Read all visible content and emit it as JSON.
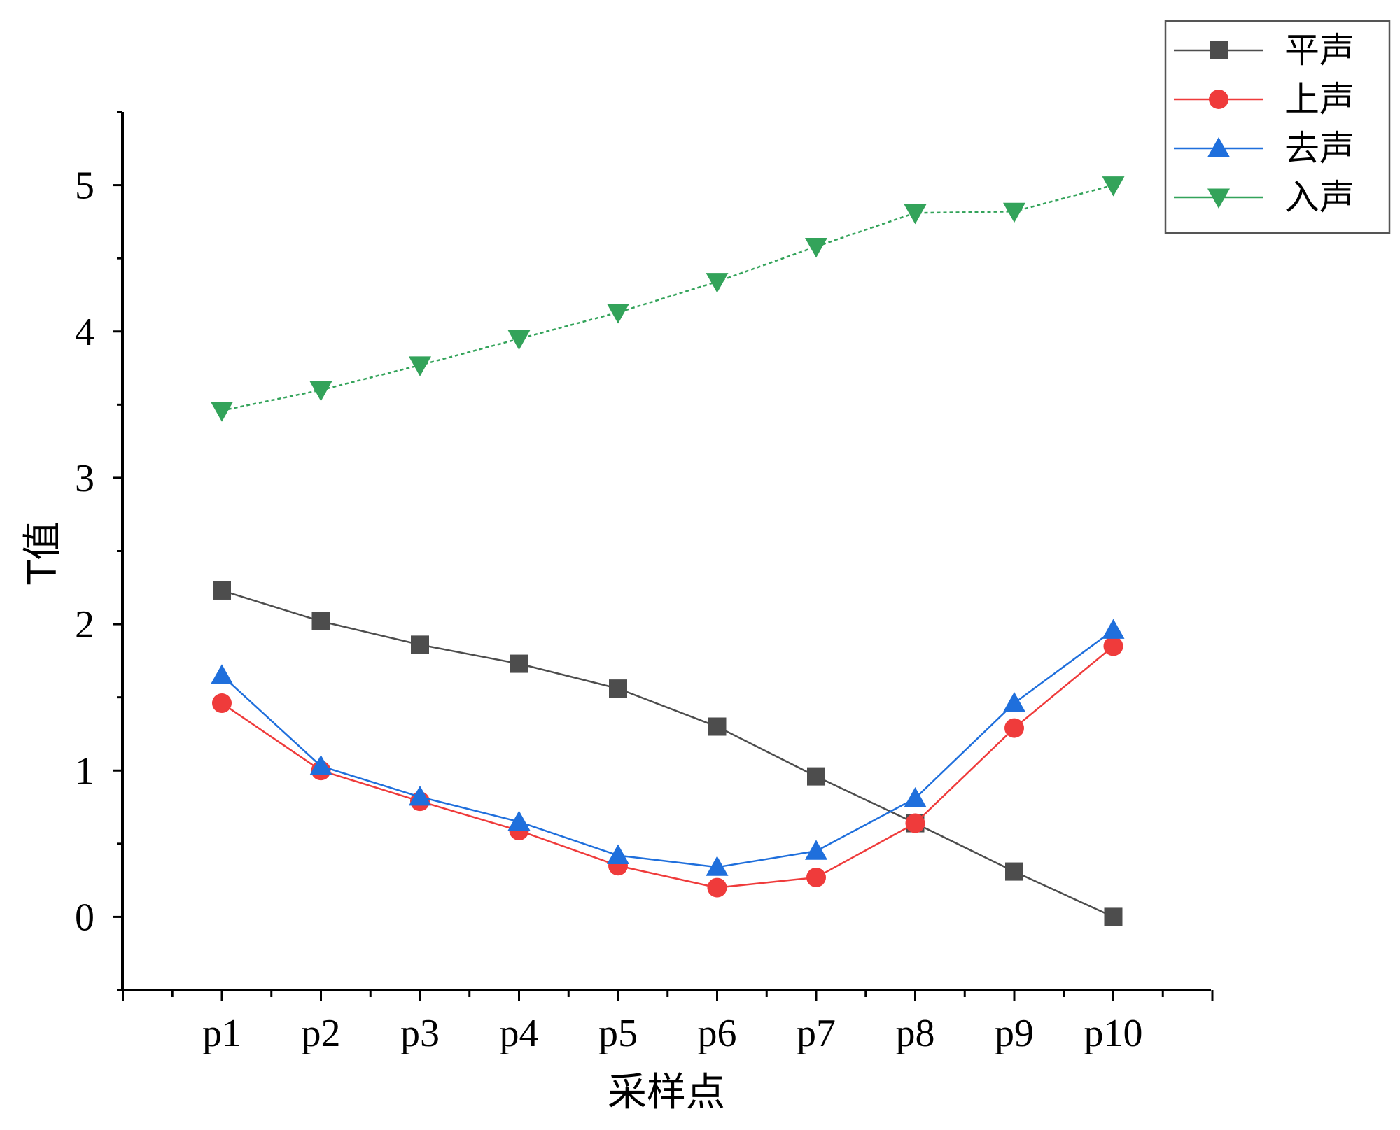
{
  "chart_data": {
    "type": "line",
    "title": "",
    "xlabel": "采样点",
    "ylabel": "T值",
    "categories": [
      "p1",
      "p2",
      "p3",
      "p4",
      "p5",
      "p6",
      "p7",
      "p8",
      "p9",
      "p10"
    ],
    "ylim": [
      -0.5,
      5.5
    ],
    "yticks": [
      0,
      1,
      2,
      3,
      4,
      5
    ],
    "grid": false,
    "legend_position": "top-right",
    "series": [
      {
        "name": "平声",
        "color": "#4d4d4d",
        "marker": "square",
        "values": [
          2.23,
          2.02,
          1.86,
          1.73,
          1.56,
          1.3,
          0.96,
          0.64,
          0.31,
          0.0
        ]
      },
      {
        "name": "上声",
        "color": "#ef3b3b",
        "marker": "circle",
        "values": [
          1.46,
          1.0,
          0.79,
          0.59,
          0.35,
          0.2,
          0.27,
          0.64,
          1.29,
          1.85
        ]
      },
      {
        "name": "去声",
        "color": "#1f6fdc",
        "marker": "triangle-up",
        "values": [
          1.65,
          1.03,
          0.82,
          0.65,
          0.42,
          0.34,
          0.45,
          0.81,
          1.46,
          1.96
        ]
      },
      {
        "name": "入声",
        "color": "#33a35a",
        "marker": "triangle-down",
        "values": [
          3.46,
          3.6,
          3.77,
          3.95,
          4.13,
          4.34,
          4.58,
          4.81,
          4.82,
          5.0
        ]
      }
    ]
  }
}
